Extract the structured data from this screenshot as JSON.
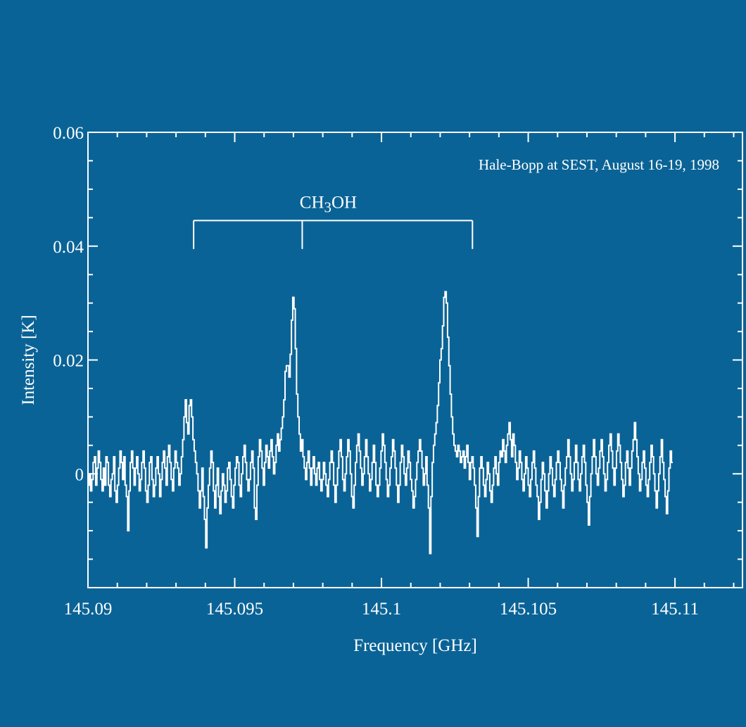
{
  "colors": {
    "background": "#0a6396",
    "foreground": "#ffffff"
  },
  "chart_data": {
    "type": "line",
    "step": true,
    "title": "",
    "xlabel": "Frequency [GHz]",
    "ylabel": "Intensity [K]",
    "xlim": [
      145.09,
      145.1123
    ],
    "ylim": [
      -0.02,
      0.06
    ],
    "x_ticks": [
      {
        "value": 145.09,
        "label": "145.09"
      },
      {
        "value": 145.095,
        "label": "145.095"
      },
      {
        "value": 145.1,
        "label": "145.1"
      },
      {
        "value": 145.105,
        "label": "145.105"
      },
      {
        "value": 145.11,
        "label": "145.11"
      }
    ],
    "y_ticks": [
      {
        "value": 0,
        "label": "0"
      },
      {
        "value": 0.02,
        "label": "0.02"
      },
      {
        "value": 0.04,
        "label": "0.04"
      },
      {
        "value": 0.06,
        "label": "0.06"
      }
    ],
    "grid": false,
    "annotation": "Hale-Bopp at SEST, August 16-19, 1998",
    "molecule": {
      "main": "CH",
      "sub": "3",
      "rest": "OH"
    },
    "line_markers": [
      145.0936,
      145.0973,
      145.1031
    ],
    "bracket_y": 0.0445,
    "marker_y": 0.0395,
    "series": [
      {
        "x_start": 145.09,
        "x_step": 4.36e-05,
        "values": [
          -0.002,
          0.0,
          -0.003,
          -0.001,
          0.002,
          0.003,
          -0.002,
          0.001,
          0.004,
          0.002,
          -0.001,
          -0.003,
          0.001,
          -0.002,
          0.003,
          0.002,
          -0.002,
          -0.004,
          -0.001,
          0.0,
          0.003,
          -0.003,
          -0.005,
          -0.002,
          0.001,
          0.004,
          0.002,
          -0.001,
          0.003,
          -0.002,
          -0.004,
          -0.01,
          -0.003,
          0.002,
          0.004,
          0.001,
          -0.002,
          0.001,
          0.003,
          0.0,
          -0.003,
          -0.001,
          0.002,
          0.004,
          0.001,
          -0.003,
          -0.005,
          -0.002,
          0.002,
          0.003,
          -0.001,
          -0.004,
          -0.002,
          0.001,
          0.003,
          0.0,
          -0.004,
          -0.001,
          0.002,
          0.004,
          0.001,
          -0.002,
          0.003,
          0.005,
          0.002,
          -0.001,
          -0.003,
          0.001,
          0.004,
          0.002,
          0.001,
          -0.002,
          0.0,
          0.003,
          0.006,
          0.01,
          0.013,
          0.009,
          0.007,
          0.012,
          0.013,
          0.01,
          0.006,
          0.004,
          0.002,
          0.0,
          -0.003,
          -0.006,
          -0.003,
          0.001,
          -0.004,
          -0.008,
          -0.013,
          -0.006,
          -0.002,
          0.001,
          0.004,
          0.002,
          -0.003,
          -0.006,
          -0.002,
          0.001,
          -0.004,
          -0.007,
          -0.003,
          0.0,
          -0.002,
          -0.005,
          -0.003,
          0.001,
          0.002,
          -0.001,
          -0.004,
          -0.006,
          -0.002,
          0.001,
          0.003,
          0.002,
          -0.002,
          -0.004,
          0.0,
          0.003,
          0.005,
          0.002,
          -0.001,
          -0.003,
          -0.001,
          0.002,
          0.004,
          0.001,
          -0.006,
          -0.008,
          -0.002,
          0.003,
          0.006,
          0.004,
          0.001,
          -0.002,
          0.002,
          0.005,
          0.003,
          0.001,
          0.004,
          0.006,
          0.003,
          0.0,
          0.002,
          0.005,
          0.007,
          0.004,
          0.006,
          0.008,
          0.01,
          0.013,
          0.018,
          0.019,
          0.019,
          0.017,
          0.021,
          0.027,
          0.031,
          0.029,
          0.022,
          0.014,
          0.01,
          0.007,
          0.004,
          0.006,
          0.003,
          0.001,
          -0.001,
          0.002,
          0.004,
          0.001,
          -0.002,
          0.001,
          0.003,
          0.0,
          -0.002,
          0.001,
          0.002,
          -0.001,
          -0.003,
          -0.001,
          0.002,
          0.0,
          -0.002,
          -0.004,
          -0.001,
          0.002,
          0.004,
          0.002,
          -0.002,
          -0.005,
          -0.002,
          0.001,
          0.004,
          0.006,
          0.003,
          -0.001,
          -0.003,
          0.0,
          0.003,
          0.006,
          0.004,
          0.0,
          -0.004,
          -0.006,
          -0.002,
          0.002,
          0.005,
          0.007,
          0.004,
          0.001,
          -0.002,
          0.0,
          0.003,
          0.006,
          0.003,
          0.0,
          -0.003,
          -0.001,
          0.002,
          0.005,
          0.002,
          -0.002,
          -0.004,
          -0.002,
          0.001,
          0.004,
          0.007,
          0.005,
          0.002,
          -0.001,
          -0.004,
          -0.002,
          0.001,
          0.003,
          0.006,
          0.004,
          0.001,
          -0.002,
          -0.005,
          -0.002,
          0.002,
          0.005,
          0.003,
          0.0,
          -0.002,
          0.001,
          0.004,
          0.002,
          -0.001,
          -0.003,
          -0.006,
          -0.004,
          -0.001,
          0.002,
          0.004,
          0.006,
          0.004,
          0.001,
          -0.002,
          0.0,
          0.003,
          -0.002,
          -0.006,
          -0.014,
          -0.004,
          0.002,
          0.005,
          0.007,
          0.009,
          0.012,
          0.016,
          0.02,
          0.022,
          0.026,
          0.031,
          0.032,
          0.03,
          0.024,
          0.019,
          0.014,
          0.01,
          0.007,
          0.005,
          0.004,
          0.003,
          0.005,
          0.004,
          0.002,
          0.003,
          0.004,
          0.001,
          0.003,
          0.005,
          0.002,
          -0.001,
          0.002,
          0.003,
          0.001,
          -0.002,
          -0.006,
          -0.011,
          -0.004,
          0.001,
          0.003,
          0.001,
          -0.002,
          -0.004,
          -0.001,
          0.002,
          0.0,
          -0.003,
          -0.005,
          -0.002,
          0.001,
          0.003,
          0.0,
          -0.002,
          0.002,
          0.004,
          0.003,
          0.006,
          0.004,
          0.002,
          0.005,
          0.007,
          0.009,
          0.006,
          0.003,
          0.007,
          0.005,
          0.002,
          -0.001,
          0.001,
          0.004,
          0.002,
          -0.001,
          -0.003,
          0.0,
          0.003,
          0.001,
          -0.002,
          -0.004,
          -0.001,
          0.002,
          0.004,
          0.001,
          -0.002,
          -0.004,
          -0.008,
          -0.005,
          -0.001,
          0.002,
          0.0,
          -0.003,
          -0.006,
          -0.003,
          0.0,
          0.003,
          0.001,
          -0.002,
          -0.004,
          -0.001,
          0.002,
          0.004,
          0.002,
          -0.001,
          -0.003,
          -0.006,
          -0.002,
          0.001,
          0.003,
          0.006,
          0.003,
          0.0,
          -0.003,
          -0.001,
          0.002,
          0.005,
          0.002,
          -0.001,
          -0.003,
          0.0,
          0.003,
          0.005,
          0.002,
          -0.002,
          -0.005,
          -0.009,
          -0.004,
          0.0,
          0.003,
          0.006,
          0.003,
          0.0,
          -0.002,
          0.001,
          0.004,
          0.006,
          0.003,
          0.0,
          -0.003,
          -0.001,
          0.002,
          0.005,
          0.007,
          0.004,
          0.001,
          -0.002,
          0.001,
          0.004,
          0.007,
          0.005,
          0.002,
          -0.001,
          -0.004,
          -0.002,
          0.002,
          0.004,
          0.001,
          -0.002,
          0.001,
          0.004,
          0.006,
          0.009,
          0.006,
          0.003,
          0.0,
          -0.003,
          -0.001,
          0.002,
          0.004,
          0.001,
          -0.002,
          -0.004,
          -0.001,
          0.002,
          0.005,
          0.003,
          0.0,
          -0.003,
          -0.006,
          -0.003,
          0.0,
          0.003,
          0.006,
          0.002,
          -0.001,
          -0.004,
          -0.007,
          -0.003,
          0.001,
          0.004,
          0.002
        ]
      }
    ]
  }
}
